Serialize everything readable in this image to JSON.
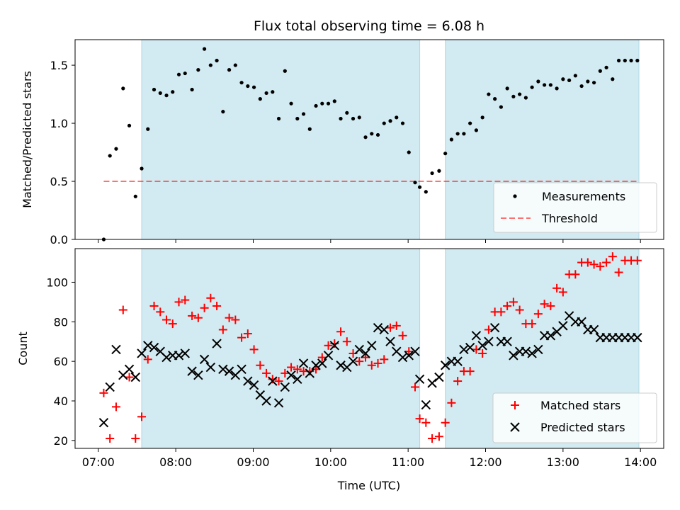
{
  "chart_data": {
    "title": "Flux total observing time = 6.08 h",
    "xlabel": "Time (UTC)",
    "x_tick_labels": [
      "07:00",
      "08:00",
      "09:00",
      "10:00",
      "11:00",
      "12:00",
      "13:00",
      "14:00"
    ],
    "x_tick_values": [
      7,
      8,
      9,
      10,
      11,
      12,
      13,
      14
    ],
    "xlim": [
      6.7,
      14.3
    ],
    "observing_periods": [
      [
        7.56,
        11.15
      ],
      [
        11.48,
        13.98
      ]
    ],
    "colors": {
      "shade": "#add8e6",
      "threshold": "#ff0000",
      "matched": "#ff0000",
      "predicted": "#000000",
      "measurements": "#000000"
    },
    "top": {
      "type": "scatter",
      "ylabel": "Matched/Predicted stars",
      "ylim": [
        0,
        1.72
      ],
      "y_tick_values": [
        0.0,
        0.5,
        1.0,
        1.5
      ],
      "y_tick_labels": [
        "0.0",
        "0.5",
        "1.0",
        "1.5"
      ],
      "threshold": {
        "value": 0.5,
        "x_range": [
          7.07,
          13.98
        ]
      },
      "legend": {
        "position": "lower-right",
        "entries": [
          "Measurements",
          "Threshold"
        ]
      },
      "measurements": {
        "x": [
          7.07,
          7.15,
          7.23,
          7.32,
          7.4,
          7.48,
          7.56,
          7.64,
          7.72,
          7.8,
          7.88,
          7.96,
          8.04,
          8.12,
          8.21,
          8.29,
          8.37,
          8.45,
          8.53,
          8.61,
          8.69,
          8.77,
          8.85,
          8.93,
          9.01,
          9.09,
          9.17,
          9.25,
          9.33,
          9.41,
          9.49,
          9.57,
          9.65,
          9.73,
          9.81,
          9.89,
          9.97,
          10.05,
          10.13,
          10.21,
          10.29,
          10.37,
          10.45,
          10.53,
          10.61,
          10.69,
          10.77,
          10.85,
          10.93,
          11.01,
          11.09,
          11.15,
          11.23,
          11.31,
          11.4,
          11.48,
          11.56,
          11.64,
          11.72,
          11.8,
          11.88,
          11.96,
          12.04,
          12.12,
          12.2,
          12.28,
          12.36,
          12.44,
          12.52,
          12.6,
          12.68,
          12.76,
          12.84,
          12.92,
          13.0,
          13.08,
          13.16,
          13.24,
          13.32,
          13.4,
          13.48,
          13.56,
          13.64,
          13.72,
          13.8,
          13.88,
          13.96
        ],
        "y": [
          0.0,
          0.72,
          0.78,
          1.3,
          0.98,
          0.37,
          0.61,
          0.95,
          1.29,
          1.26,
          1.24,
          1.27,
          1.42,
          1.43,
          1.29,
          1.46,
          1.64,
          1.5,
          1.54,
          1.1,
          1.46,
          1.5,
          1.35,
          1.32,
          1.31,
          1.21,
          1.26,
          1.27,
          1.04,
          1.45,
          1.17,
          1.04,
          1.08,
          0.95,
          1.15,
          1.17,
          1.17,
          1.19,
          1.04,
          1.09,
          1.04,
          1.05,
          0.88,
          0.91,
          0.9,
          1.0,
          1.02,
          1.05,
          1.0,
          0.75,
          0.49,
          0.45,
          0.41,
          0.57,
          0.59,
          0.74,
          0.86,
          0.91,
          0.91,
          1.0,
          0.94,
          1.05,
          1.25,
          1.21,
          1.14,
          1.3,
          1.23,
          1.25,
          1.22,
          1.31,
          1.36,
          1.33,
          1.33,
          1.3,
          1.38,
          1.37,
          1.41,
          1.32,
          1.36,
          1.35,
          1.45,
          1.48,
          1.38,
          1.54,
          1.54,
          1.54,
          1.54
        ]
      }
    },
    "bottom": {
      "type": "scatter",
      "ylabel": "Count",
      "ylim": [
        16,
        117
      ],
      "y_tick_values": [
        20,
        40,
        60,
        80,
        100
      ],
      "y_tick_labels": [
        "20",
        "40",
        "60",
        "80",
        "100"
      ],
      "legend": {
        "position": "lower-right",
        "entries": [
          "Matched stars",
          "Predicted stars"
        ]
      },
      "series": [
        {
          "name": "Matched stars",
          "marker": "plus",
          "x": [
            7.07,
            7.15,
            7.23,
            7.32,
            7.4,
            7.48,
            7.56,
            7.64,
            7.72,
            7.8,
            7.88,
            7.96,
            8.04,
            8.12,
            8.21,
            8.29,
            8.37,
            8.45,
            8.53,
            8.61,
            8.69,
            8.77,
            8.85,
            8.93,
            9.01,
            9.09,
            9.17,
            9.25,
            9.33,
            9.41,
            9.49,
            9.57,
            9.65,
            9.73,
            9.81,
            9.89,
            9.97,
            10.05,
            10.13,
            10.21,
            10.29,
            10.37,
            10.45,
            10.53,
            10.61,
            10.69,
            10.77,
            10.85,
            10.93,
            11.01,
            11.09,
            11.15,
            11.23,
            11.31,
            11.4,
            11.48,
            11.56,
            11.64,
            11.72,
            11.8,
            11.88,
            11.96,
            12.04,
            12.12,
            12.2,
            12.28,
            12.36,
            12.44,
            12.52,
            12.6,
            12.68,
            12.76,
            12.84,
            12.92,
            13.0,
            13.08,
            13.16,
            13.24,
            13.32,
            13.4,
            13.48,
            13.56,
            13.64,
            13.72,
            13.8,
            13.88,
            13.96
          ],
          "y": [
            44,
            21,
            37,
            86,
            52,
            21,
            32,
            61,
            88,
            85,
            81,
            79,
            90,
            91,
            83,
            82,
            87,
            92,
            88,
            76,
            82,
            81,
            72,
            74,
            66,
            58,
            54,
            51,
            50,
            54,
            57,
            56,
            55,
            55,
            56,
            62,
            68,
            69,
            75,
            70,
            64,
            60,
            62,
            58,
            59,
            61,
            77,
            78,
            73,
            65,
            47,
            31,
            29,
            21,
            22,
            29,
            39,
            50,
            55,
            55,
            66,
            64,
            76,
            85,
            85,
            88,
            90,
            86,
            79,
            79,
            84,
            89,
            88,
            97,
            95,
            104,
            104,
            110,
            110,
            109,
            108,
            110,
            113,
            105,
            111,
            111,
            111
          ]
        },
        {
          "name": "Predicted stars",
          "marker": "x",
          "x": [
            7.07,
            7.15,
            7.23,
            7.32,
            7.4,
            7.48,
            7.56,
            7.64,
            7.72,
            7.8,
            7.88,
            7.96,
            8.04,
            8.12,
            8.21,
            8.29,
            8.37,
            8.45,
            8.53,
            8.61,
            8.69,
            8.77,
            8.85,
            8.93,
            9.01,
            9.09,
            9.17,
            9.25,
            9.33,
            9.41,
            9.49,
            9.57,
            9.65,
            9.73,
            9.81,
            9.89,
            9.97,
            10.05,
            10.13,
            10.21,
            10.29,
            10.37,
            10.45,
            10.53,
            10.61,
            10.69,
            10.77,
            10.85,
            10.93,
            11.01,
            11.09,
            11.15,
            11.23,
            11.31,
            11.4,
            11.48,
            11.56,
            11.64,
            11.72,
            11.8,
            11.88,
            11.96,
            12.04,
            12.12,
            12.2,
            12.28,
            12.36,
            12.44,
            12.52,
            12.6,
            12.68,
            12.76,
            12.84,
            12.92,
            13.0,
            13.08,
            13.16,
            13.24,
            13.32,
            13.4,
            13.48,
            13.56,
            13.64,
            13.72,
            13.8,
            13.88,
            13.96
          ],
          "y": [
            29,
            47,
            66,
            53,
            56,
            52,
            64,
            68,
            67,
            65,
            62,
            63,
            63,
            64,
            55,
            53,
            61,
            57,
            69,
            56,
            55,
            53,
            56,
            50,
            48,
            43,
            40,
            50,
            39,
            47,
            53,
            51,
            59,
            54,
            58,
            59,
            63,
            68,
            58,
            57,
            60,
            66,
            64,
            68,
            77,
            76,
            70,
            65,
            62,
            63,
            65,
            51,
            38,
            49,
            52,
            58,
            60,
            60,
            66,
            67,
            73,
            68,
            70,
            77,
            70,
            70,
            63,
            65,
            65,
            64,
            66,
            73,
            73,
            75,
            78,
            83,
            80,
            80,
            76,
            76,
            72,
            72,
            72,
            72,
            72,
            72,
            72
          ]
        }
      ]
    }
  }
}
